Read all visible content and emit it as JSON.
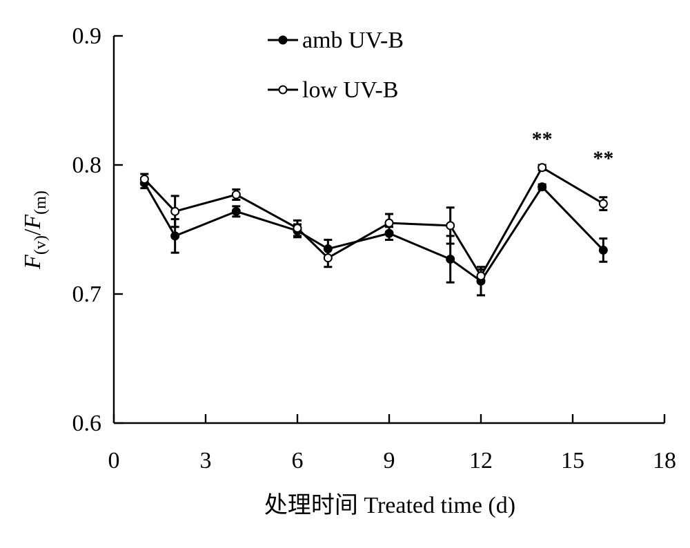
{
  "chart_data": {
    "type": "line",
    "title": "",
    "xlabel": "处理时间 Treated time (d)",
    "ylabel_parts": {
      "f1": "F",
      "sub1": "(v)",
      "slash": "/",
      "f2": "F",
      "sub2": "(m)"
    },
    "xlim": [
      0,
      18
    ],
    "ylim": [
      0.6,
      0.9
    ],
    "x_ticks": [
      0,
      3,
      6,
      9,
      12,
      15,
      18
    ],
    "x_tick_labels": [
      "0",
      "3",
      "6",
      "9",
      "12",
      "15",
      "18"
    ],
    "y_ticks": [
      0.6,
      0.7,
      0.8,
      0.9
    ],
    "y_tick_labels": [
      "0.6",
      "0.7",
      "0.8",
      "0.9"
    ],
    "grid": false,
    "legend_position": "top-center",
    "x": [
      1,
      2,
      4,
      6,
      7,
      9,
      11,
      12,
      14,
      16
    ],
    "series": [
      {
        "name": "amb UV-B",
        "marker": "filled-circle",
        "values": [
          0.786,
          0.745,
          0.764,
          0.749,
          0.735,
          0.747,
          0.727,
          0.71,
          0.783,
          0.734
        ],
        "errors": [
          0.004,
          0.013,
          0.004,
          0.005,
          0.007,
          0.005,
          0.018,
          0.011,
          0.002,
          0.009
        ]
      },
      {
        "name": "low UV-B",
        "marker": "open-circle",
        "values": [
          0.789,
          0.764,
          0.777,
          0.751,
          0.728,
          0.755,
          0.753,
          0.714,
          0.798,
          0.77
        ],
        "errors": [
          0.004,
          0.012,
          0.004,
          0.006,
          0.007,
          0.007,
          0.014,
          0.005,
          0.002,
          0.005
        ]
      }
    ],
    "annotations": [
      {
        "text": "**",
        "x": 14,
        "y": 0.815
      },
      {
        "text": "**",
        "x": 16,
        "y": 0.8
      }
    ],
    "colors": {
      "line": "#000000",
      "background": "#ffffff"
    }
  }
}
